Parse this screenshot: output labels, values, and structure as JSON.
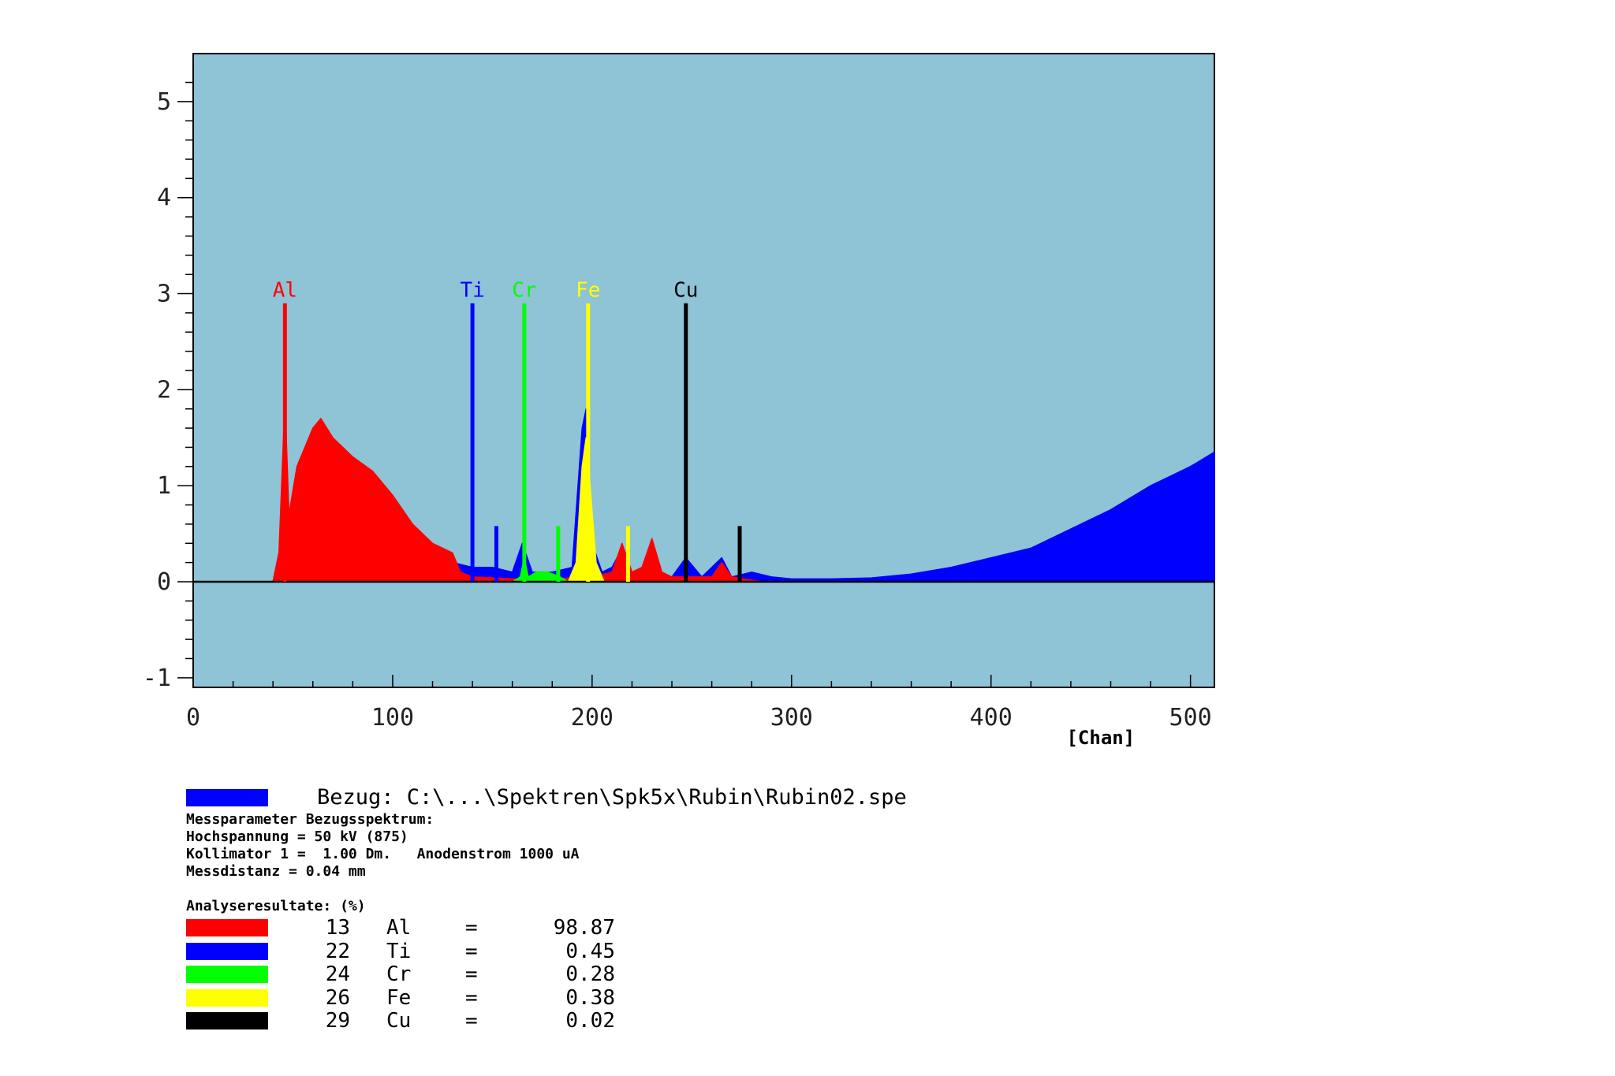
{
  "chart_data": {
    "type": "area",
    "xlabel": "[Chan]",
    "ylabel": "",
    "xlim": [
      0,
      512
    ],
    "ylim": [
      -1.1,
      5.5
    ],
    "x_ticks": [
      "0",
      "100",
      "200",
      "300",
      "400",
      "500"
    ],
    "y_ticks": [
      "-1",
      "0",
      "1",
      "2",
      "3",
      "4",
      "5"
    ],
    "background": "#8fc3d6",
    "grid": false,
    "series": [
      {
        "name": "Bezug",
        "color": "#0000ff",
        "x": [
          40,
          46,
          55,
          62,
          70,
          80,
          90,
          100,
          110,
          120,
          130,
          140,
          150,
          160,
          165,
          170,
          180,
          190,
          195,
          197,
          200,
          205,
          210,
          215,
          220,
          230,
          240,
          247,
          255,
          265,
          270,
          280,
          290,
          300,
          320,
          340,
          360,
          380,
          400,
          420,
          440,
          460,
          480,
          500,
          512
        ],
        "y": [
          0,
          0.6,
          0.85,
          1.0,
          0.8,
          0.65,
          0.55,
          0.5,
          0.4,
          0.3,
          0.2,
          0.15,
          0.15,
          0.1,
          0.4,
          0.1,
          0.1,
          0.15,
          1.6,
          1.8,
          0.4,
          0.1,
          0.15,
          0.35,
          0.1,
          0.1,
          0.05,
          0.25,
          0.05,
          0.25,
          0.05,
          0.1,
          0.05,
          0.03,
          0.03,
          0.04,
          0.08,
          0.15,
          0.25,
          0.35,
          0.55,
          0.75,
          1.0,
          1.2,
          1.35
        ]
      },
      {
        "name": "Al",
        "color": "#ff0000",
        "x": [
          40,
          43,
          46,
          48,
          52,
          60,
          64,
          70,
          80,
          90,
          100,
          110,
          120,
          130,
          134,
          140,
          160,
          180,
          200,
          210,
          215,
          220,
          225,
          230,
          235,
          240,
          260,
          265,
          270,
          285
        ],
        "y": [
          0,
          0.3,
          1.9,
          0.7,
          1.2,
          1.6,
          1.7,
          1.5,
          1.3,
          1.15,
          0.9,
          0.6,
          0.4,
          0.3,
          0.1,
          0.05,
          0.03,
          0.03,
          0.05,
          0.1,
          0.4,
          0.1,
          0.15,
          0.45,
          0.1,
          0.05,
          0.05,
          0.2,
          0.05,
          0
        ]
      },
      {
        "name": "Cr",
        "color": "#00ff00",
        "x": [
          160,
          164,
          166,
          168,
          172,
          178,
          184,
          188
        ],
        "y": [
          0,
          0.05,
          0.25,
          0.05,
          0.1,
          0.1,
          0.05,
          0
        ]
      },
      {
        "name": "Fe",
        "color": "#ffff00",
        "x": [
          188,
          192,
          195,
          197,
          199,
          202,
          206
        ],
        "y": [
          0,
          0.2,
          1.2,
          1.5,
          1.0,
          0.2,
          0
        ]
      }
    ],
    "markers": [
      {
        "x": 46,
        "height": 2.9,
        "color": "#ff0000",
        "label": "Al"
      },
      {
        "x": 140,
        "height": 2.9,
        "color": "#0000ff",
        "label": "Ti"
      },
      {
        "x": 152,
        "height": 0.58,
        "color": "#0000ff",
        "label": ""
      },
      {
        "x": 166,
        "height": 2.9,
        "color": "#00ff00",
        "label": "Cr"
      },
      {
        "x": 183,
        "height": 0.58,
        "color": "#00ff00",
        "label": ""
      },
      {
        "x": 198,
        "height": 2.9,
        "color": "#ffff00",
        "label": "Fe"
      },
      {
        "x": 218,
        "height": 0.58,
        "color": "#ffff00",
        "label": ""
      },
      {
        "x": 247,
        "height": 2.9,
        "color": "#000000",
        "label": "Cu"
      },
      {
        "x": 274,
        "height": 0.58,
        "color": "#000000",
        "label": ""
      }
    ]
  },
  "legend": {
    "reference_line": "Bezug: C:\\...\\Spektren\\Spk5x\\Rubin\\Rubin02.spe",
    "reference_color": "#0000ff",
    "params_title": "Messparameter Bezugsspektrum:",
    "voltage": "Hochspannung = 50 kV (875)",
    "collimator": "Kollimator 1 =  1.00 Dm.   Anodenstrom 1000 uA",
    "distance": "Messdistanz = 0.04 mm",
    "results_title": "Analyseresultate: (%)",
    "results": [
      {
        "z": "13",
        "element": "Al",
        "eq": "=",
        "value": "98.87",
        "color": "#ff0000"
      },
      {
        "z": "22",
        "element": "Ti",
        "eq": "=",
        "value": "0.45",
        "color": "#0000ff"
      },
      {
        "z": "24",
        "element": "Cr",
        "eq": "=",
        "value": "0.28",
        "color": "#00ff00"
      },
      {
        "z": "26",
        "element": "Fe",
        "eq": "=",
        "value": "0.38",
        "color": "#ffff00"
      },
      {
        "z": "29",
        "element": "Cu",
        "eq": "=",
        "value": "0.02",
        "color": "#000000"
      }
    ]
  }
}
